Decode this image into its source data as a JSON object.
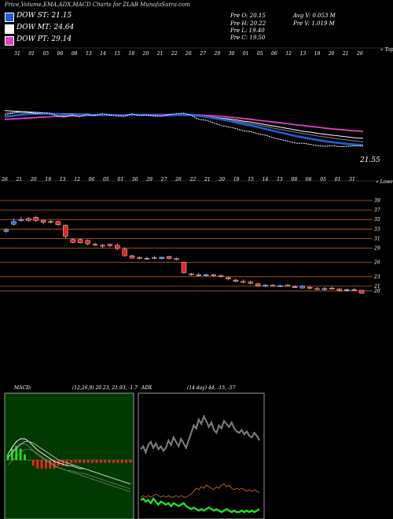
{
  "header": "Price,Volume,EMA,ADX,MACD Charts for ZLAB MunafaSutra.com",
  "legend": [
    {
      "label": "DOW ST: 21.15",
      "color": "#1f5fd6"
    },
    {
      "label": "DOW MT: 24.64",
      "color": "#ffffff"
    },
    {
      "label": "DOW PT: 29.14",
      "color": "#e040c0"
    }
  ],
  "ohlc": {
    "open": "Pre O: 20.15",
    "high": "Pre H: 20.22",
    "low": "Pre L: 19.40",
    "close": "Pre C: 19.50",
    "avg_vol": "Avg V: 0.053 M",
    "prev_vol": "Pre V: 1.019 M"
  },
  "chart_data": [
    {
      "type": "line",
      "panel": "ema",
      "top_axis_dates": [
        "31",
        "01",
        "05",
        "06",
        "08",
        "13",
        "14",
        "15",
        "18",
        "20",
        "21",
        "22",
        "26",
        "27",
        "29",
        "30",
        "01",
        "05",
        "06",
        "12",
        "13",
        "19",
        "20",
        "21",
        "26"
      ],
      "axis_tag": "« Topo",
      "last_price_label": "21.55",
      "series": [
        {
          "name": "price",
          "color": "#ffffff",
          "values": [
            28.6,
            29.0,
            29.4,
            29.3,
            28.9,
            29.1,
            29.0,
            28.4,
            28.1,
            28.6,
            28.2,
            28.7,
            28.5,
            28.9,
            28.6,
            28.4,
            28.3,
            28.9,
            28.5,
            28.6,
            28.4,
            28.3,
            28.7,
            28.9,
            29.0,
            28.5,
            27.6,
            27.4,
            26.8,
            26.2,
            25.9,
            25.5,
            25.0,
            24.8,
            24.3,
            24.0,
            23.4,
            23.0,
            22.6,
            22.2,
            22.2,
            21.9,
            21.6,
            21.5,
            21.6,
            21.4,
            21.5,
            21.6,
            21.55
          ]
        },
        {
          "name": "DOW ST",
          "color": "#1f5fd6",
          "values": [
            28.2,
            28.4,
            28.6,
            28.8,
            28.9,
            28.9,
            28.9,
            28.8,
            28.7,
            28.7,
            28.6,
            28.6,
            28.6,
            28.6,
            28.6,
            28.6,
            28.5,
            28.6,
            28.6,
            28.6,
            28.5,
            28.5,
            28.5,
            28.6,
            28.7,
            28.6,
            28.4,
            28.2,
            27.9,
            27.6,
            27.3,
            26.9,
            26.5,
            26.2,
            25.8,
            25.4,
            25.0,
            24.6,
            24.2,
            23.8,
            23.5,
            23.2,
            22.9,
            22.6,
            22.4,
            22.2,
            22.0,
            21.9,
            21.8
          ]
        },
        {
          "name": "DOW MT",
          "color": "#ffffff",
          "values": [
            29.6,
            29.5,
            29.4,
            29.3,
            29.2,
            29.1,
            29.0,
            28.9,
            28.9,
            28.9,
            28.8,
            28.8,
            28.7,
            28.7,
            28.7,
            28.6,
            28.6,
            28.6,
            28.6,
            28.6,
            28.5,
            28.5,
            28.5,
            28.5,
            28.5,
            28.5,
            28.4,
            28.3,
            28.1,
            27.9,
            27.7,
            27.5,
            27.2,
            27.0,
            26.7,
            26.4,
            26.1,
            25.8,
            25.5,
            25.2,
            24.9,
            24.7,
            24.4,
            24.2,
            24.0,
            23.8,
            23.6,
            23.4,
            23.3
          ]
        },
        {
          "name": "DOW PT",
          "color": "#e040c0",
          "values": [
            27.6,
            27.7,
            27.8,
            27.9,
            28.0,
            28.1,
            28.2,
            28.3,
            28.3,
            28.4,
            28.4,
            28.5,
            28.5,
            28.5,
            28.6,
            28.6,
            28.6,
            28.6,
            28.7,
            28.7,
            28.7,
            28.7,
            28.7,
            28.7,
            28.7,
            28.7,
            28.6,
            28.5,
            28.4,
            28.3,
            28.1,
            28.0,
            27.8,
            27.6,
            27.4,
            27.2,
            27.0,
            26.8,
            26.6,
            26.4,
            26.2,
            26.0,
            25.8,
            25.6,
            25.4,
            25.3,
            25.1,
            25.0,
            24.9
          ]
        },
        {
          "name": "",
          "color": "#888888",
          "values": [
            29.0,
            29.1,
            29.1,
            29.1,
            29.0,
            29.0,
            28.9,
            28.8,
            28.8,
            28.8,
            28.7,
            28.7,
            28.7,
            28.7,
            28.7,
            28.6,
            28.6,
            28.6,
            28.6,
            28.6,
            28.5,
            28.5,
            28.5,
            28.6,
            28.6,
            28.5,
            28.4,
            28.2,
            28.0,
            27.7,
            27.5,
            27.2,
            26.9,
            26.6,
            26.3,
            26.0,
            25.6,
            25.3,
            25.0,
            24.7,
            24.4,
            24.1,
            23.8,
            23.6,
            23.3,
            23.1,
            22.9,
            22.7,
            22.5
          ]
        }
      ]
    },
    {
      "type": "candlestick",
      "panel": "price",
      "dates": [
        "26",
        "21",
        "20",
        "19",
        "13",
        "12",
        "06",
        "05",
        "01",
        "30",
        "29",
        "27",
        "26",
        "22",
        "21",
        "20",
        "18",
        "15",
        "14",
        "13",
        "08",
        "06",
        "05",
        "01",
        "31"
      ],
      "axis_tag": "« Lowe",
      "price_levels": [
        39,
        37,
        35,
        33,
        31,
        29,
        26,
        23,
        21,
        20
      ],
      "candles": [
        {
          "o": 32.5,
          "h": 33.2,
          "l": 32.2,
          "c": 32.8
        },
        {
          "o": 34.0,
          "h": 35.2,
          "l": 33.8,
          "c": 34.6
        },
        {
          "o": 35.0,
          "h": 35.6,
          "l": 34.6,
          "c": 35.0
        },
        {
          "o": 35.2,
          "h": 35.6,
          "l": 34.5,
          "c": 34.8
        },
        {
          "o": 35.5,
          "h": 35.8,
          "l": 34.5,
          "c": 34.8
        },
        {
          "o": 34.8,
          "h": 35.0,
          "l": 34.0,
          "c": 34.4
        },
        {
          "o": 34.6,
          "h": 34.9,
          "l": 34.2,
          "c": 34.5
        },
        {
          "o": 34.6,
          "h": 34.8,
          "l": 33.6,
          "c": 33.9
        },
        {
          "o": 33.8,
          "h": 34.0,
          "l": 31.0,
          "c": 31.5
        },
        {
          "o": 30.8,
          "h": 31.0,
          "l": 30.0,
          "c": 30.2
        },
        {
          "o": 30.8,
          "h": 31.0,
          "l": 30.0,
          "c": 30.1
        },
        {
          "o": 30.6,
          "h": 30.8,
          "l": 29.6,
          "c": 29.9
        },
        {
          "o": 29.8,
          "h": 30.2,
          "l": 29.4,
          "c": 29.6
        },
        {
          "o": 29.6,
          "h": 29.8,
          "l": 29.0,
          "c": 29.4
        },
        {
          "o": 29.8,
          "h": 30.0,
          "l": 29.2,
          "c": 29.5
        },
        {
          "o": 29.6,
          "h": 30.0,
          "l": 28.6,
          "c": 28.9
        },
        {
          "o": 28.8,
          "h": 29.2,
          "l": 27.2,
          "c": 27.4
        },
        {
          "o": 27.4,
          "h": 27.6,
          "l": 26.8,
          "c": 26.9
        },
        {
          "o": 27.0,
          "h": 27.3,
          "l": 26.6,
          "c": 26.8
        },
        {
          "o": 26.8,
          "h": 27.2,
          "l": 26.5,
          "c": 26.9
        },
        {
          "o": 27.0,
          "h": 27.4,
          "l": 26.7,
          "c": 26.9
        },
        {
          "o": 26.8,
          "h": 27.2,
          "l": 26.6,
          "c": 27.1
        },
        {
          "o": 27.2,
          "h": 27.4,
          "l": 26.6,
          "c": 26.8
        },
        {
          "o": 26.8,
          "h": 27.0,
          "l": 26.4,
          "c": 26.7
        },
        {
          "o": 26.0,
          "h": 26.2,
          "l": 23.6,
          "c": 23.8
        },
        {
          "o": 23.6,
          "h": 23.8,
          "l": 23.2,
          "c": 23.4
        },
        {
          "o": 23.4,
          "h": 23.8,
          "l": 23.0,
          "c": 23.2
        },
        {
          "o": 23.4,
          "h": 23.6,
          "l": 23.0,
          "c": 23.4
        },
        {
          "o": 23.4,
          "h": 23.6,
          "l": 23.0,
          "c": 23.2
        },
        {
          "o": 23.2,
          "h": 23.4,
          "l": 22.8,
          "c": 23.1
        },
        {
          "o": 22.8,
          "h": 23.0,
          "l": 22.2,
          "c": 22.5
        },
        {
          "o": 22.3,
          "h": 22.6,
          "l": 21.8,
          "c": 22.0
        },
        {
          "o": 22.0,
          "h": 22.4,
          "l": 21.6,
          "c": 21.9
        },
        {
          "o": 21.9,
          "h": 22.2,
          "l": 21.4,
          "c": 21.6
        },
        {
          "o": 21.5,
          "h": 21.8,
          "l": 20.9,
          "c": 21.1
        },
        {
          "o": 21.0,
          "h": 21.4,
          "l": 20.8,
          "c": 21.2
        },
        {
          "o": 21.2,
          "h": 21.4,
          "l": 20.9,
          "c": 21.0
        },
        {
          "o": 21.0,
          "h": 21.3,
          "l": 20.8,
          "c": 21.1
        },
        {
          "o": 21.2,
          "h": 21.4,
          "l": 20.9,
          "c": 21.0
        },
        {
          "o": 20.9,
          "h": 21.2,
          "l": 20.6,
          "c": 20.8
        },
        {
          "o": 20.6,
          "h": 21.2,
          "l": 20.5,
          "c": 21.0
        },
        {
          "o": 20.8,
          "h": 21.0,
          "l": 20.3,
          "c": 20.5
        },
        {
          "o": 20.5,
          "h": 20.8,
          "l": 20.2,
          "c": 20.4
        },
        {
          "o": 20.4,
          "h": 20.8,
          "l": 20.0,
          "c": 20.5
        },
        {
          "o": 20.6,
          "h": 20.9,
          "l": 20.3,
          "c": 20.5
        },
        {
          "o": 20.4,
          "h": 20.6,
          "l": 19.9,
          "c": 20.1
        },
        {
          "o": 20.1,
          "h": 20.5,
          "l": 19.8,
          "c": 20.3
        },
        {
          "o": 20.3,
          "h": 20.6,
          "l": 20.0,
          "c": 20.15
        },
        {
          "o": 20.15,
          "h": 20.22,
          "l": 19.4,
          "c": 19.5
        }
      ]
    },
    {
      "type": "line",
      "panel": "macd",
      "title": "MACD:",
      "params": "(12,26,9) 20.23, 21.93, -1.7",
      "series": [
        {
          "name": "",
          "color": "#ffffff",
          "values": [
            0.4,
            0.9,
            1.3,
            1.5,
            1.5,
            1.3,
            1.0,
            0.7,
            0.5,
            0.3,
            0.1,
            -0.1,
            -0.2,
            -0.3,
            -0.4,
            -0.4,
            -0.5,
            -0.6,
            -0.6,
            -0.7,
            -0.8,
            -0.9,
            -1.0,
            -1.1,
            -1.2,
            -1.3,
            -1.4,
            -1.5,
            -1.6,
            -1.7
          ]
        },
        {
          "name": "",
          "color": "#bbbbbb",
          "values": [
            0.2,
            0.5,
            0.8,
            1.1,
            1.3,
            1.3,
            1.2,
            1.0,
            0.8,
            0.6,
            0.4,
            0.2,
            0.0,
            -0.1,
            -0.2,
            -0.3,
            -0.4,
            -0.5,
            -0.6,
            -0.7,
            -0.8,
            -0.9,
            -1.0,
            -1.1,
            -1.2,
            -1.3,
            -1.4,
            -1.5,
            -1.6,
            -1.7
          ]
        }
      ],
      "histogram": [
        0.2,
        0.4,
        0.5,
        0.4,
        0.2,
        0.0,
        -0.2,
        -0.3,
        -0.3,
        -0.3,
        -0.3,
        -0.3,
        -0.2,
        -0.2,
        -0.2,
        -0.1,
        -0.1,
        -0.1,
        -0.1,
        -0.1,
        -0.1,
        -0.1,
        -0.1,
        -0.1,
        -0.1,
        -0.1,
        -0.1,
        -0.1,
        -0.1,
        -0.1
      ]
    },
    {
      "type": "line",
      "panel": "adx",
      "title": "ADX",
      "params": "(14 day) 44, -15, -57",
      "series": [
        {
          "name": "",
          "color": "#ffffff",
          "values": [
            44,
            46,
            42,
            47,
            49,
            45,
            48,
            44,
            46,
            43,
            45,
            50,
            47,
            52,
            49,
            46,
            51,
            48,
            45,
            50,
            55,
            60,
            58,
            64,
            61,
            66,
            63,
            59,
            62,
            57,
            55,
            60,
            58,
            63,
            61,
            59,
            62,
            58,
            56,
            55,
            57,
            54,
            56,
            53,
            52,
            55,
            53,
            50
          ]
        },
        {
          "name": "",
          "color": "#e07020",
          "values": [
            12,
            13,
            12,
            13,
            12,
            13,
            14,
            13,
            12,
            13,
            12,
            13,
            12,
            12,
            13,
            12,
            13,
            12,
            12,
            13,
            14,
            16,
            18,
            17,
            19,
            18,
            20,
            19,
            18,
            17,
            19,
            18,
            20,
            21,
            19,
            20,
            18,
            17,
            18,
            17,
            18,
            17,
            16,
            17,
            16,
            17,
            16,
            15
          ]
        },
        {
          "name": "",
          "color": "#22dd22",
          "values": [
            10,
            11,
            9,
            10,
            8,
            11,
            9,
            7,
            9,
            8,
            7,
            8,
            6,
            8,
            7,
            6,
            7,
            8,
            6,
            5,
            4,
            5,
            4,
            3,
            4,
            3,
            4,
            5,
            4,
            3,
            4,
            3,
            2,
            3,
            4,
            3,
            2,
            3,
            2,
            2,
            3,
            2,
            3,
            2,
            3,
            2,
            3,
            4
          ]
        }
      ]
    }
  ]
}
